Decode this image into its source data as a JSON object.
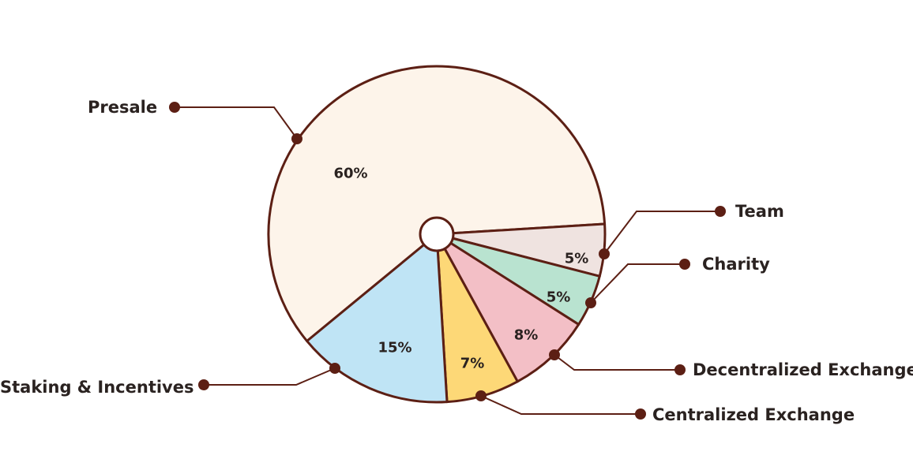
{
  "chart_data": {
    "type": "pie",
    "title": "",
    "slices": [
      {
        "label": "Presale",
        "value": 60,
        "value_label": "60%",
        "color": "#fdf4ea"
      },
      {
        "label": "Team",
        "value": 5,
        "value_label": "5%",
        "color": "#efe3e0"
      },
      {
        "label": "Charity",
        "value": 5,
        "value_label": "5%",
        "color": "#b9e3d0"
      },
      {
        "label": "Decentralized Exchange",
        "value": 8,
        "value_label": "8%",
        "color": "#f3bfc6"
      },
      {
        "label": "Centralized Exchange",
        "value": 7,
        "value_label": "7%",
        "color": "#fdd877"
      },
      {
        "label": "Staking & Incentives",
        "value": 15,
        "value_label": "15%",
        "color": "#bfe4f5"
      }
    ],
    "outline_color": "#5c1f14",
    "leader_color": "#5c1f14"
  }
}
